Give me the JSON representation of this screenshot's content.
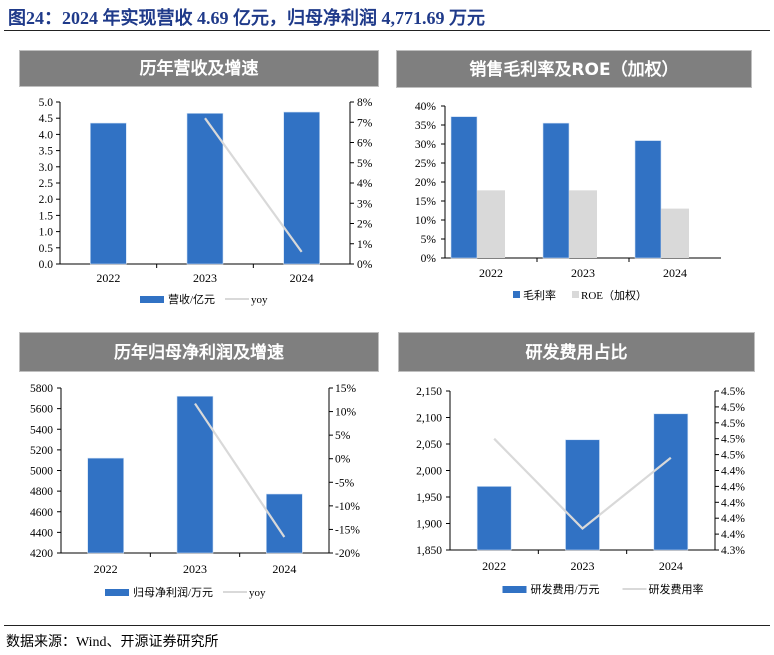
{
  "figure_title": "图24：2024 年实现营收 4.69 亿元，归母净利润 4,771.69 万元",
  "source": "数据来源：Wind、开源证券研究所",
  "colors": {
    "bar_blue": "#3172c4",
    "bar_gray": "#d9d9d9",
    "line_gray": "#d9d9d9",
    "header_gray": "#7f7f7f",
    "title_blue": "#1f3a8a"
  },
  "chart_data": [
    {
      "id": "revenue",
      "type": "bar+line",
      "title": "历年营收及增速",
      "categories": [
        "2022",
        "2023",
        "2024"
      ],
      "series": [
        {
          "name": "营收/亿元",
          "type": "bar",
          "axis": "left",
          "values": [
            4.35,
            4.65,
            4.69
          ]
        },
        {
          "name": "yoy",
          "type": "line",
          "axis": "right",
          "values": [
            null,
            0.072,
            0.006
          ]
        }
      ],
      "left_axis": {
        "min": 0,
        "max": 5.0,
        "ticks": [
          "0.0",
          "0.5",
          "1.0",
          "1.5",
          "2.0",
          "2.5",
          "3.0",
          "3.5",
          "4.0",
          "4.5",
          "5.0"
        ]
      },
      "right_axis": {
        "min": 0,
        "max": 0.08,
        "ticks": [
          "0%",
          "1%",
          "2%",
          "3%",
          "4%",
          "5%",
          "6%",
          "7%",
          "8%"
        ]
      },
      "legend": [
        "营收/亿元",
        "yoy"
      ],
      "legend_position": "bottom",
      "grid": false
    },
    {
      "id": "margin",
      "type": "bar",
      "title": "销售毛利率及ROE（加权）",
      "categories": [
        "2022",
        "2023",
        "2024"
      ],
      "series": [
        {
          "name": "毛利率",
          "type": "bar",
          "axis": "left",
          "values": [
            0.372,
            0.355,
            0.309
          ]
        },
        {
          "name": "ROE（加权）",
          "type": "bar",
          "axis": "left",
          "values": [
            0.178,
            0.178,
            0.13
          ]
        }
      ],
      "left_axis": {
        "min": 0,
        "max": 0.4,
        "ticks": [
          "0%",
          "5%",
          "10%",
          "15%",
          "20%",
          "25%",
          "30%",
          "35%",
          "40%"
        ]
      },
      "legend": [
        "毛利率",
        "ROE（加权）"
      ],
      "legend_position": "bottom",
      "grid": false
    },
    {
      "id": "net_profit",
      "type": "bar+line",
      "title": "历年归母净利润及增速",
      "categories": [
        "2022",
        "2023",
        "2024"
      ],
      "series": [
        {
          "name": "归母净利润/万元",
          "type": "bar",
          "axis": "left",
          "values": [
            5120,
            5720,
            4772
          ]
        },
        {
          "name": "yoy",
          "type": "line",
          "axis": "right",
          "values": [
            null,
            0.117,
            -0.166
          ]
        }
      ],
      "left_axis": {
        "min": 4200,
        "max": 5800,
        "ticks": [
          "4200",
          "4400",
          "4600",
          "4800",
          "5000",
          "5200",
          "5400",
          "5600",
          "5800"
        ]
      },
      "right_axis": {
        "min": -0.2,
        "max": 0.15,
        "ticks": [
          "-20%",
          "-15%",
          "-10%",
          "-5%",
          "0%",
          "5%",
          "10%",
          "15%"
        ]
      },
      "legend": [
        "归母净利润/万元",
        "yoy"
      ],
      "legend_position": "bottom",
      "grid": false
    },
    {
      "id": "rnd",
      "type": "bar+line",
      "title": "研发费用占比",
      "categories": [
        "2022",
        "2023",
        "2024"
      ],
      "series": [
        {
          "name": "研发费用/万元",
          "type": "bar",
          "axis": "left",
          "values": [
            1970,
            2058,
            2107
          ]
        },
        {
          "name": "研发费用率",
          "type": "line",
          "axis": "right",
          "values": [
            0.0449,
            0.04377,
            0.04466
          ]
        }
      ],
      "left_axis": {
        "min": 1850,
        "max": 2150,
        "ticks": [
          "1,850",
          "1,900",
          "1,950",
          "2,000",
          "2,050",
          "2,100",
          "2,150"
        ]
      },
      "right_axis": {
        "min": 0.0435,
        "max": 0.0455,
        "ticks": [
          "4.3%",
          "4.4%",
          "4.4%",
          "4.4%",
          "4.4%",
          "4.4%",
          "4.5%",
          "4.5%",
          "4.5%",
          "4.5%",
          "4.5%"
        ]
      },
      "legend": [
        "研发费用/万元",
        "研发费用率"
      ],
      "legend_position": "bottom",
      "grid": false
    }
  ]
}
